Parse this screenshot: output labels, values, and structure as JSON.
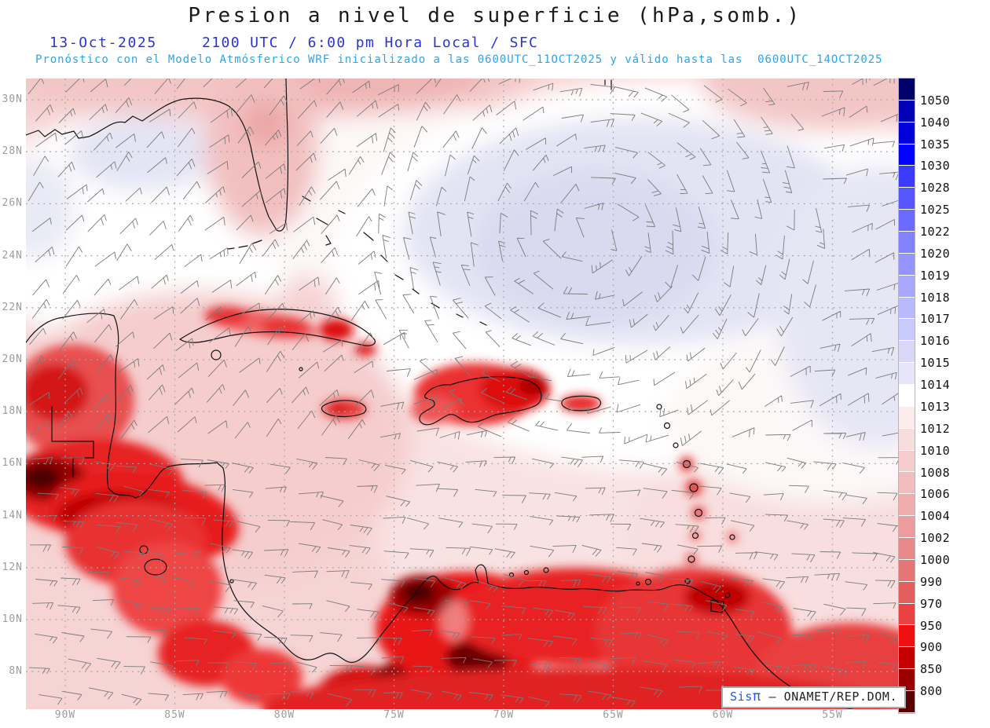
{
  "title": "Presion a nivel de superficie (hPa,somb.)",
  "header": {
    "date": "13-Oct-2025",
    "time_info": "2100 UTC / 6:00 pm Hora Local / SFC",
    "model_info": "Pronóstico con el Modelo Atmósferico WRF inicializado a las 0600UTC_11OCT2025 y válido hasta las  0600UTC_14OCT2025"
  },
  "palette": {
    "header_blue": "#2b36cf",
    "model_cyan": "#2ba4ea",
    "axis_gray": "#9c9c9c",
    "barb_gray": "#7b7b7b",
    "coast_black": "#111111"
  },
  "map": {
    "lat_labels": [
      "30N",
      "28N",
      "26N",
      "24N",
      "22N",
      "20N",
      "18N",
      "16N",
      "14N",
      "12N",
      "10N",
      "8N"
    ],
    "lon_labels": [
      "90W",
      "85W",
      "80W",
      "75W",
      "70W",
      "65W",
      "60W",
      "55W"
    ]
  },
  "colorbar": {
    "unit": "hPa",
    "labels": [
      "1050",
      "1040",
      "1035",
      "1030",
      "1028",
      "1025",
      "1022",
      "1020",
      "1019",
      "1018",
      "1017",
      "1016",
      "1015",
      "1014",
      "1013",
      "1012",
      "1010",
      "1008",
      "1006",
      "1004",
      "1002",
      "1000",
      "990",
      "970",
      "950",
      "900",
      "850",
      "800"
    ],
    "colors": [
      "#00006B",
      "#0000B4",
      "#0000DC",
      "#0202FF",
      "#3B3BFF",
      "#5656FF",
      "#6B6BFF",
      "#8282FF",
      "#9595FF",
      "#A7A7FF",
      "#B9B9FF",
      "#C9C9FB",
      "#D8D8F6",
      "#E6E6F8",
      "#FFFFFF",
      "#FBEBEB",
      "#F8DDDD",
      "#F5CDCD",
      "#F2BDBD",
      "#EFADAD",
      "#EC9C9C",
      "#E98A8A",
      "#E67575",
      "#E35F5F",
      "#EA4242",
      "#EE1111",
      "#C40000",
      "#9A0000",
      "#5A0000"
    ]
  },
  "watermark": {
    "sis": "Sis",
    "pi": "π",
    "rest": " – ONAMET/REP.DOM."
  },
  "chart_data": {
    "type": "heatmap",
    "title": "Presion a nivel de superficie (hPa,somb.)",
    "units": "hPa",
    "x_ticks": [
      "90W",
      "85W",
      "80W",
      "75W",
      "70W",
      "65W",
      "60W",
      "55W"
    ],
    "y_ticks": [
      "30N",
      "28N",
      "26N",
      "24N",
      "22N",
      "20N",
      "18N",
      "16N",
      "14N",
      "12N",
      "10N",
      "8N"
    ],
    "colorbar_levels_hPa": [
      800,
      850,
      900,
      950,
      970,
      990,
      1000,
      1002,
      1004,
      1006,
      1008,
      1010,
      1012,
      1013,
      1014,
      1015,
      1016,
      1017,
      1018,
      1019,
      1020,
      1022,
      1025,
      1028,
      1030,
      1035,
      1040,
      1050
    ],
    "field_summary": [
      "Light blue/lavender shading (~1014-1016 hPa) over western Atlantic high centered near 68W 26N and along NE map edge",
      "White band (~1013-1014 hPa) separating Atlantic high from pink Caribbean field, also over central Gulf of Mexico",
      "Pale pink (~1008-1012 hPa) over most of Caribbean Sea, Gulf coast and tropical Atlantic",
      "Strong red shading (reduced surface pressure <1004 hPa) over terrain of Guatemala, Honduras, Nicaragua, Costa Rica, Panama",
      "Dark maroon minima over Guatemalan highlands and Andes of Colombia/Venezuela",
      "Red maxima over mountainous islands: central-eastern Cuba, Jamaica, Hispaniola, Puerto Rico, Lesser Antilles",
      "Broad red field over northern South America (Colombia/Venezuela coast)"
    ],
    "overlays": [
      "gray wind barbs (easterly trades south of ~20N, anticyclonic flow around Atlantic high)",
      "black coastlines",
      "dotted gray graticule every 2 deg lat / 5 deg lon"
    ],
    "legend_position": "right-colorbar"
  }
}
